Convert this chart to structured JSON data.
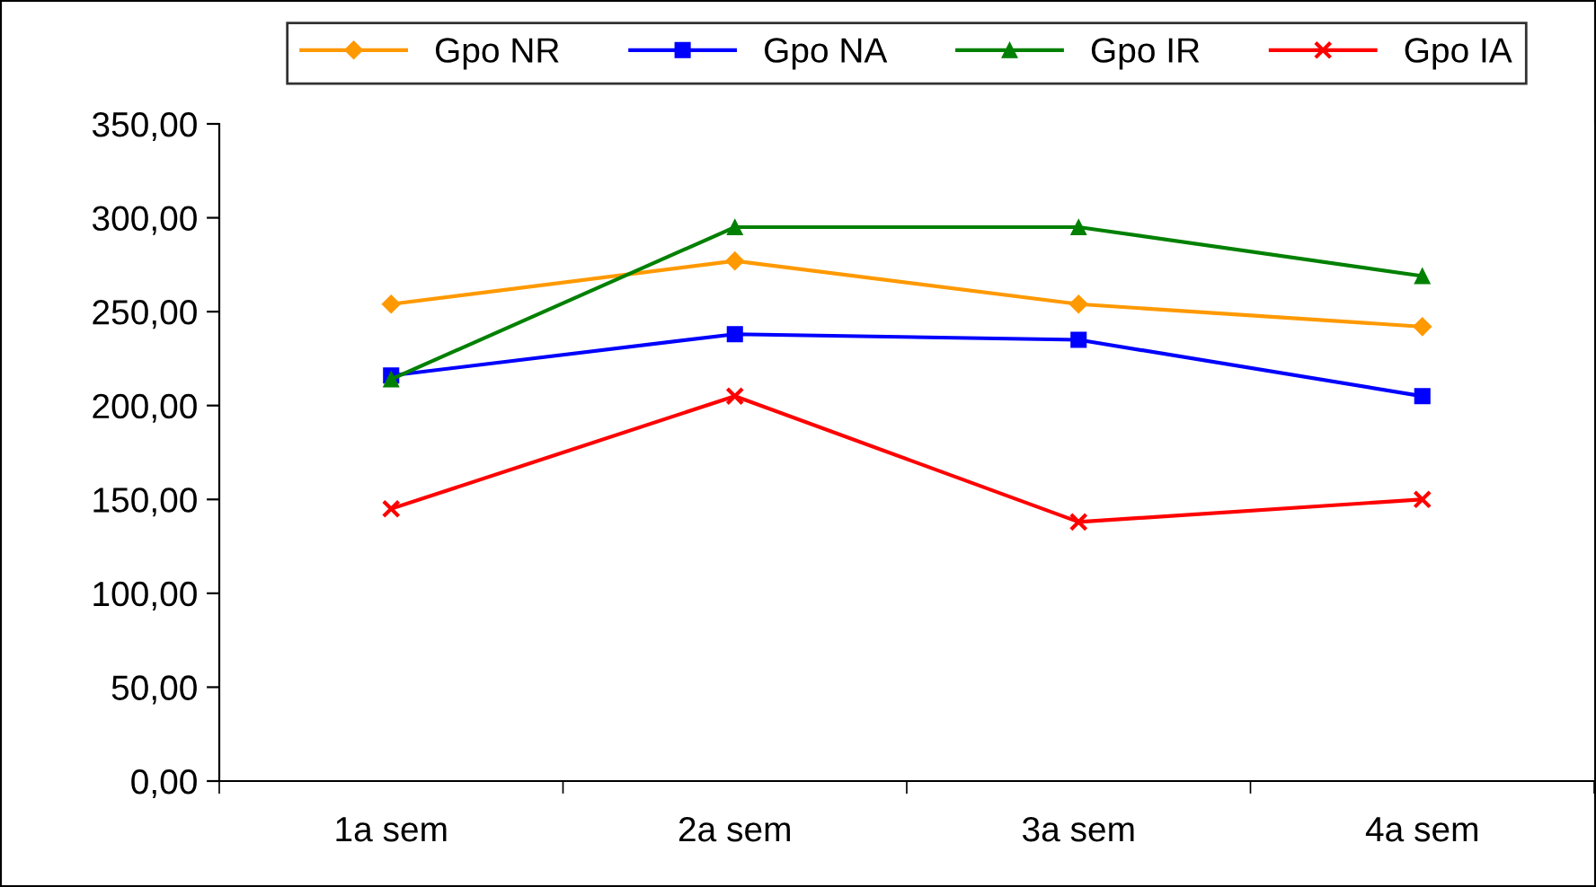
{
  "chart_data": {
    "type": "line",
    "categories": [
      "1a sem",
      "2a sem",
      "3a sem",
      "4a sem"
    ],
    "series": [
      {
        "name": "Gpo NR",
        "color": "#ff9900",
        "marker": "diamond",
        "values": [
          254,
          277,
          254,
          242
        ]
      },
      {
        "name": "Gpo NA",
        "color": "#0000ff",
        "marker": "square",
        "values": [
          216,
          238,
          235,
          205
        ]
      },
      {
        "name": "Gpo IR",
        "color": "#008000",
        "marker": "triangle",
        "values": [
          214,
          295,
          295,
          269
        ]
      },
      {
        "name": "Gpo IA",
        "color": "#ff0000",
        "marker": "cross",
        "values": [
          145,
          205,
          138,
          150
        ]
      }
    ],
    "ylim": [
      0,
      350
    ],
    "yticks": [
      {
        "value": 0,
        "label": "0,00"
      },
      {
        "value": 50,
        "label": "50,00"
      },
      {
        "value": 100,
        "label": "100,00"
      },
      {
        "value": 150,
        "label": "150,00"
      },
      {
        "value": 200,
        "label": "200,00"
      },
      {
        "value": 250,
        "label": "250,00"
      },
      {
        "value": 300,
        "label": "300,00"
      },
      {
        "value": 350,
        "label": "350,00"
      }
    ],
    "grid": false,
    "legend": "top"
  }
}
